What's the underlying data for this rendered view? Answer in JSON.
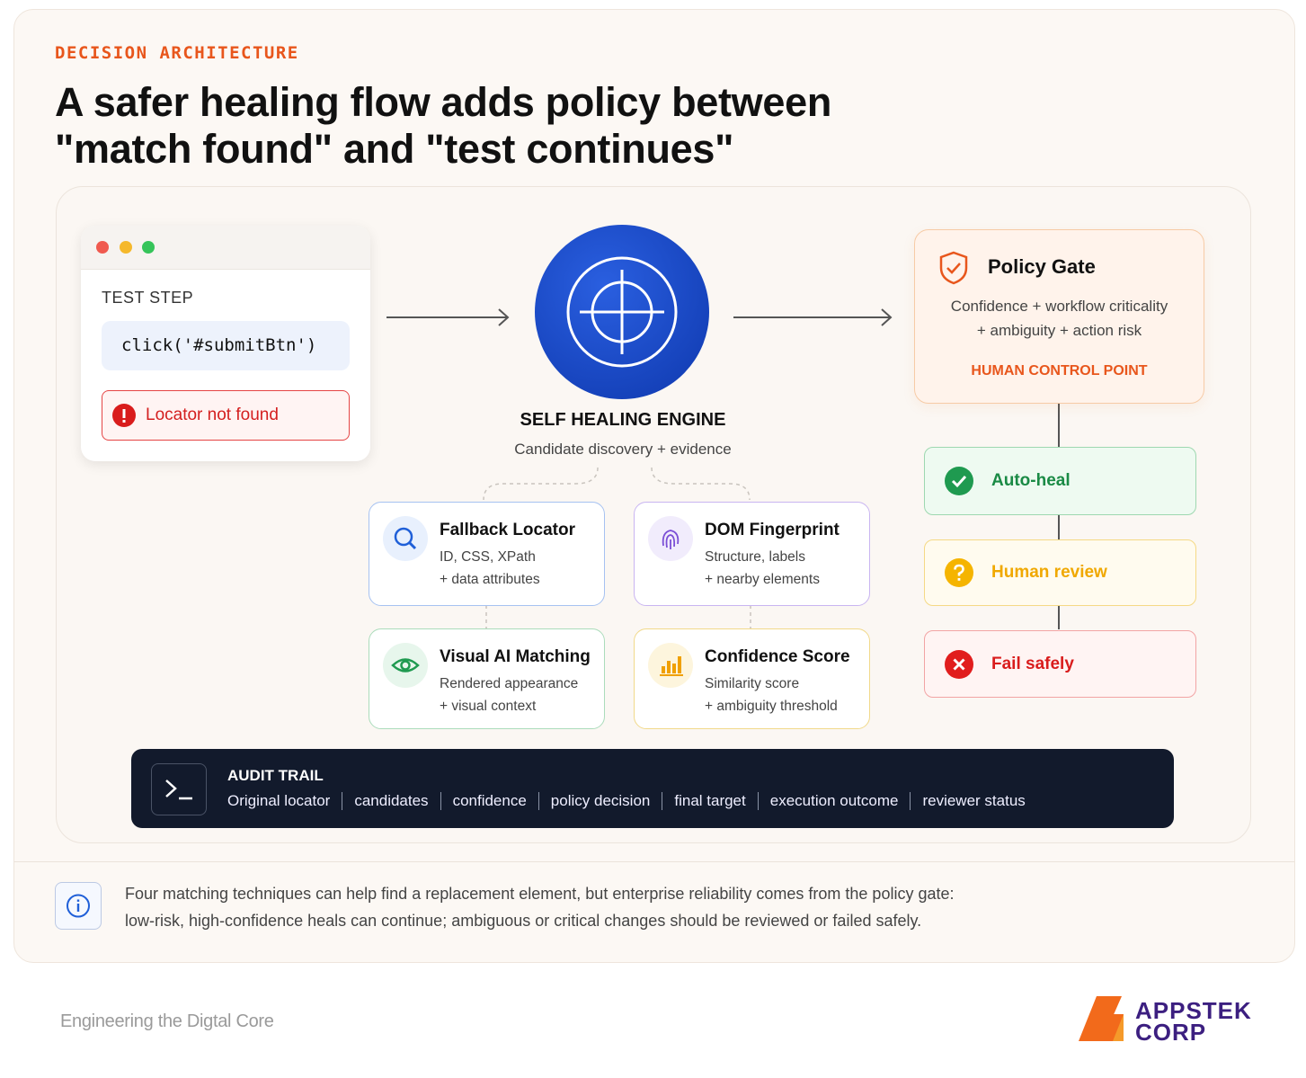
{
  "header": {
    "eyebrow": "DECISION ARCHITECTURE",
    "title_lines": [
      "A safer healing flow adds policy between",
      "\"match found\" and \"test continues\""
    ]
  },
  "test_step": {
    "label": "TEST STEP",
    "code": "click('#submitBtn')",
    "error": "Locator not found"
  },
  "engine": {
    "title": "SELF HEALING ENGINE",
    "subtitle": "Candidate discovery + evidence"
  },
  "techniques": [
    {
      "title": "Fallback Locator",
      "lines": [
        "ID, CSS, XPath",
        "+ data attributes"
      ]
    },
    {
      "title": "DOM Fingerprint",
      "lines": [
        "Structure, labels",
        "+ nearby elements"
      ]
    },
    {
      "title": "Visual AI Matching",
      "lines": [
        "Rendered appearance",
        "+ visual context"
      ]
    },
    {
      "title": "Confidence Score",
      "lines": [
        "Similarity score",
        "+ ambiguity threshold"
      ]
    }
  ],
  "policy_gate": {
    "title": "Policy Gate",
    "lines": [
      "Confidence + workflow criticality",
      "+ ambiguity + action risk"
    ],
    "tag": "HUMAN CONTROL POINT"
  },
  "outcomes": [
    "Auto-heal",
    "Human review",
    "Fail safely"
  ],
  "audit_trail": {
    "title": "AUDIT TRAIL",
    "items": [
      "Original locator",
      "candidates",
      "confidence",
      "policy decision",
      "final target",
      "execution outcome",
      "reviewer status"
    ]
  },
  "note": {
    "lines": [
      "Four matching techniques can help find a replacement element, but enterprise reliability comes from the policy gate:",
      "low-risk, high-confidence heals can continue; ambiguous or critical changes should be reviewed or failed safely."
    ]
  },
  "footer": {
    "tagline": "Engineering the Digtal Core",
    "brand_lines": [
      "APPSTEK",
      "CORP"
    ]
  }
}
